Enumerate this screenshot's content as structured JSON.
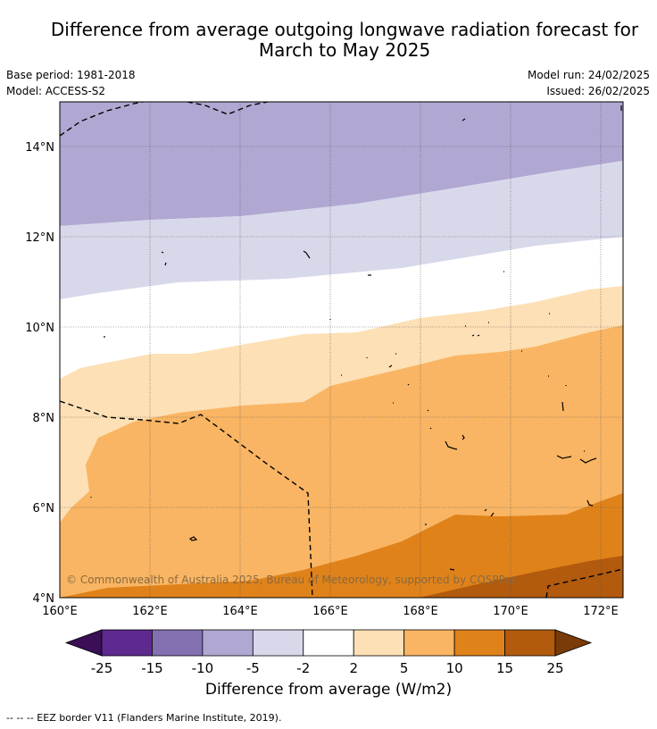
{
  "header": {
    "title_line1": "Difference from average outgoing longwave radiation forecast for",
    "title_line2": "March to May 2025",
    "base_period": "Base period: 1981-2018",
    "model": "Model: ACCESS-S2",
    "model_run": "Model run: 24/02/2025",
    "issued": "Issued: 26/02/2025"
  },
  "map": {
    "lat_labels": [
      "14°N",
      "12°N",
      "10°N",
      "8°N",
      "6°N",
      "4°N"
    ],
    "lon_labels": [
      "160°E",
      "162°E",
      "164°E",
      "166°E",
      "168°E",
      "170°E",
      "172°E"
    ],
    "copyright": "© Commonwealth of Australia 2025, Bureau of Meteorology, supported by COSPPac"
  },
  "colorbar": {
    "labels": [
      "-25",
      "-15",
      "-10",
      "-5",
      "-2",
      "2",
      "5",
      "10",
      "15",
      "25"
    ],
    "colors": [
      "#3b0f55",
      "#5e2a8f",
      "#8270b0",
      "#b0a8d2",
      "#d8d8eb",
      "#ffffff",
      "#fde0b5",
      "#f9b563",
      "#e0821a",
      "#b25a0e",
      "#7a3b08"
    ],
    "title": "Difference from average (W/m2)"
  },
  "footnote": "--  --  -- EEZ border V11 (Flanders Marine Institute, 2019)."
}
